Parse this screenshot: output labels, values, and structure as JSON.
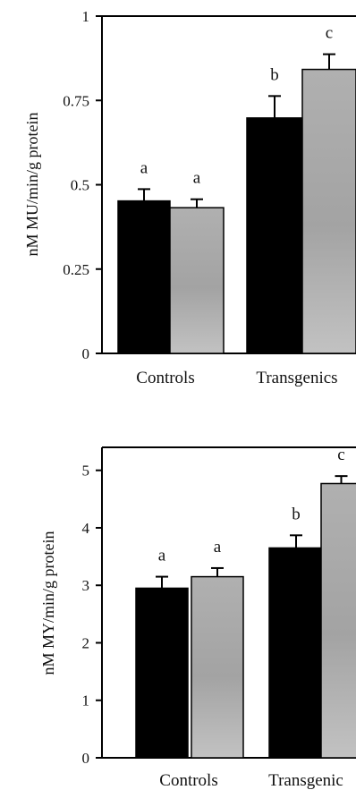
{
  "chart_data": [
    {
      "type": "bar",
      "title": "",
      "xlabel": "",
      "ylabel": "nM MU/min/g protein",
      "ylim": [
        0,
        1
      ],
      "yticks": [
        "0",
        "0.25",
        "0.5",
        "0.75",
        "1"
      ],
      "categories": [
        "Controls",
        "Transgenics"
      ],
      "series": [
        {
          "values": [
            0.452,
            0.698
          ],
          "errors": [
            0.035,
            0.065
          ],
          "letters": [
            "a",
            "b"
          ],
          "color": "#000000"
        },
        {
          "values": [
            0.432,
            0.842
          ],
          "errors": [
            0.025,
            0.045
          ],
          "letters": [
            "a",
            "c"
          ],
          "color": "#a9a9a9"
        }
      ],
      "grid": false,
      "legend": "none"
    },
    {
      "type": "bar",
      "title": "",
      "xlabel": "",
      "ylabel": "nM MY/min/g protein",
      "ylim": [
        0,
        5.4
      ],
      "yticks": [
        "0",
        "1",
        "2",
        "3",
        "4",
        "5"
      ],
      "categories": [
        "Controls",
        "Transgenic"
      ],
      "series": [
        {
          "values": [
            2.95,
            3.65
          ],
          "errors": [
            0.2,
            0.22
          ],
          "letters": [
            "a",
            "b"
          ],
          "color": "#000000"
        },
        {
          "values": [
            3.15,
            4.77
          ],
          "errors": [
            0.15,
            0.13
          ],
          "letters": [
            "a",
            "c"
          ],
          "color": "#a9a9a9"
        }
      ],
      "grid": false,
      "legend": "none"
    }
  ]
}
